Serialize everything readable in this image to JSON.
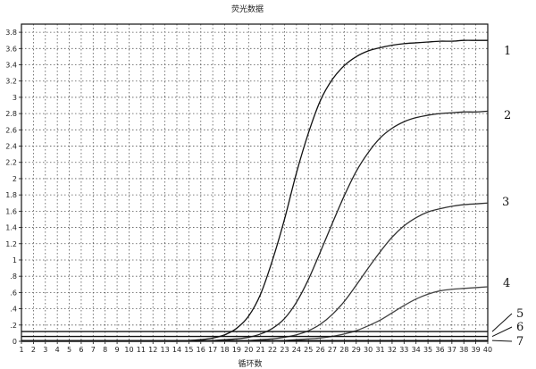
{
  "chart_data": {
    "type": "line",
    "title": "荧光数据",
    "xlabel": "循环数",
    "ylabel": "",
    "xlim": [
      1,
      40
    ],
    "ylim": [
      0,
      3.9
    ],
    "grid": true,
    "x_ticks": [
      1,
      2,
      3,
      4,
      5,
      6,
      7,
      8,
      9,
      10,
      11,
      12,
      13,
      14,
      15,
      16,
      17,
      18,
      19,
      20,
      21,
      22,
      23,
      24,
      25,
      26,
      27,
      28,
      29,
      30,
      31,
      32,
      33,
      34,
      35,
      36,
      37,
      38,
      39,
      40
    ],
    "y_ticks": [
      0,
      0.2,
      0.4,
      0.6,
      0.8,
      1,
      1.2,
      1.4,
      1.6,
      1.8,
      2,
      2.2,
      2.4,
      2.6,
      2.8,
      3,
      3.2,
      3.4,
      3.6,
      3.8
    ],
    "y_tick_labels": [
      "0",
      ".2",
      ".4",
      ".6",
      ".8",
      "1",
      "1.2",
      "1.4",
      "1.6",
      "1.8",
      "2",
      "2.2",
      "2.4",
      "2.6",
      "2.8",
      "3",
      "3.2",
      "3.4",
      "3.6",
      "3.8"
    ],
    "x": [
      1,
      2,
      3,
      4,
      5,
      6,
      7,
      8,
      9,
      10,
      11,
      12,
      13,
      14,
      15,
      16,
      17,
      18,
      19,
      20,
      21,
      22,
      23,
      24,
      25,
      26,
      27,
      28,
      29,
      30,
      31,
      32,
      33,
      34,
      35,
      36,
      37,
      38,
      39,
      40
    ],
    "series": [
      {
        "label": "1",
        "color": "#111111",
        "values": [
          0,
          0,
          0,
          0,
          0,
          0,
          0,
          0,
          0,
          0,
          0,
          0,
          0,
          0,
          0.01,
          0.02,
          0.04,
          0.08,
          0.16,
          0.31,
          0.58,
          1.0,
          1.5,
          2.07,
          2.56,
          2.96,
          3.22,
          3.39,
          3.5,
          3.57,
          3.61,
          3.64,
          3.66,
          3.67,
          3.68,
          3.69,
          3.69,
          3.7,
          3.7,
          3.7
        ]
      },
      {
        "label": "2",
        "color": "#222222",
        "values": [
          0,
          0,
          0,
          0,
          0,
          0,
          0,
          0,
          0,
          0,
          0,
          0,
          0,
          0,
          0,
          0,
          0.01,
          0.02,
          0.03,
          0.05,
          0.09,
          0.16,
          0.28,
          0.48,
          0.76,
          1.1,
          1.45,
          1.79,
          2.09,
          2.32,
          2.5,
          2.62,
          2.7,
          2.75,
          2.78,
          2.8,
          2.81,
          2.82,
          2.82,
          2.83
        ]
      },
      {
        "label": "3",
        "color": "#333333",
        "values": [
          0,
          0,
          0,
          0,
          0,
          0,
          0,
          0,
          0,
          0,
          0,
          0,
          0,
          0,
          0,
          0,
          0,
          0,
          0,
          0.01,
          0.02,
          0.03,
          0.05,
          0.08,
          0.13,
          0.21,
          0.33,
          0.49,
          0.69,
          0.9,
          1.1,
          1.28,
          1.42,
          1.52,
          1.59,
          1.63,
          1.66,
          1.68,
          1.69,
          1.7
        ]
      },
      {
        "label": "4",
        "color": "#444444",
        "values": [
          0,
          0,
          0,
          0,
          0,
          0,
          0,
          0,
          0,
          0,
          0,
          0,
          0,
          0,
          0,
          0,
          0,
          0,
          0,
          0,
          0,
          0,
          0.01,
          0.02,
          0.03,
          0.04,
          0.06,
          0.09,
          0.13,
          0.19,
          0.26,
          0.35,
          0.44,
          0.52,
          0.58,
          0.62,
          0.64,
          0.65,
          0.66,
          0.67
        ]
      },
      {
        "label": "5",
        "color": "#111111",
        "values": [
          0.12,
          0.12,
          0.12,
          0.12,
          0.12,
          0.12,
          0.12,
          0.12,
          0.12,
          0.12,
          0.12,
          0.12,
          0.12,
          0.12,
          0.12,
          0.12,
          0.12,
          0.12,
          0.12,
          0.12,
          0.12,
          0.12,
          0.12,
          0.12,
          0.12,
          0.12,
          0.12,
          0.12,
          0.12,
          0.12,
          0.12,
          0.12,
          0.12,
          0.12,
          0.12,
          0.12,
          0.12,
          0.12,
          0.12,
          0.12
        ]
      },
      {
        "label": "6",
        "color": "#111111",
        "values": [
          0.06,
          0.06,
          0.06,
          0.06,
          0.06,
          0.06,
          0.06,
          0.06,
          0.06,
          0.06,
          0.06,
          0.06,
          0.06,
          0.06,
          0.06,
          0.06,
          0.06,
          0.06,
          0.06,
          0.06,
          0.06,
          0.06,
          0.06,
          0.06,
          0.06,
          0.06,
          0.06,
          0.06,
          0.06,
          0.06,
          0.06,
          0.06,
          0.06,
          0.06,
          0.06,
          0.06,
          0.06,
          0.06,
          0.06,
          0.06
        ]
      },
      {
        "label": "7",
        "color": "#111111",
        "values": [
          0.01,
          0.01,
          0.01,
          0.01,
          0.01,
          0.01,
          0.01,
          0.01,
          0.01,
          0.01,
          0.01,
          0.01,
          0.01,
          0.01,
          0.01,
          0.01,
          0.01,
          0.01,
          0.01,
          0.01,
          0.01,
          0.01,
          0.01,
          0.01,
          0.01,
          0.01,
          0.01,
          0.01,
          0.01,
          0.01,
          0.01,
          0.01,
          0.01,
          0.01,
          0.01,
          0.01,
          0.01,
          0.01,
          0.01,
          0.01
        ]
      }
    ]
  }
}
